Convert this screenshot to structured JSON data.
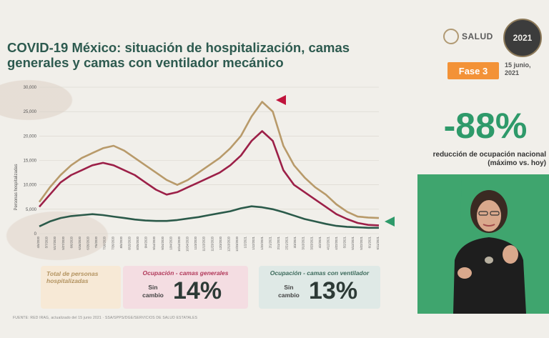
{
  "header": {
    "title": "COVID-19 México: situación de hospitalización, camas generales y camas con ventilador mecánico",
    "logo_salud": "SALUD",
    "logo_year": "2021",
    "phase": "Fase 3",
    "date": "15 junio, 2021"
  },
  "summary": {
    "percent": "-88%",
    "caption": "reducción de ocupación nacional (máximo vs. hoy)"
  },
  "cards": {
    "total_label": "Total de personas hospitalizadas",
    "general_title": "Ocupación - camas generales",
    "general_status": "Sin cambio",
    "general_value": "14%",
    "vent_title": "Ocupación - camas con ventilador",
    "vent_status": "Sin cambio",
    "vent_value": "13%"
  },
  "footer": "FUENTE: RED IRAG, actualizado del 15 junio 2021 · SSA/SPPS/DGE/SERVICIOS DE SALUD ESTATALES",
  "colors": {
    "total": "#b89a6a",
    "general": "#9c2048",
    "ventilator": "#2b5a4a",
    "accent_red": "#c0143c",
    "accent_green": "#2e9a6a"
  },
  "chart_data": {
    "type": "line",
    "ylabel": "Personas hospitalizadas",
    "ylim": [
      0,
      30000
    ],
    "yticks": [
      "0",
      "5,000",
      "10,000",
      "15,000",
      "20,000",
      "25,000",
      "30,000"
    ],
    "xticks": [
      "4/5/2020",
      "5/7/2020",
      "5/17/2020",
      "5/27/2020",
      "6/6/2020",
      "6/16/2020",
      "6/26/2020",
      "7/6/2020",
      "7/16/2020",
      "7/26/2020",
      "8/5/2020",
      "8/15/2020",
      "8/25/2020",
      "9/4/2020",
      "9/14/2020",
      "9/24/2020",
      "10/4/2020",
      "10/14/2020",
      "10/24/2020",
      "11/3/2020",
      "11/13/2020",
      "11/23/2020",
      "12/3/2020",
      "12/13/2020",
      "12/23/2020",
      "1/2/2021",
      "1/12/2021",
      "1/22/2021",
      "2/1/2021",
      "2/11/2021",
      "2/21/2021",
      "3/3/2021",
      "3/13/2021",
      "3/23/2021",
      "4/2/2021",
      "4/12/2021",
      "4/22/2021",
      "5/2/2021",
      "5/12/2021",
      "5/22/2021",
      "6/1/2021",
      "6/11/2021"
    ],
    "series": [
      {
        "name": "Total de personas hospitalizadas",
        "values": [
          6500,
          9500,
          12000,
          14000,
          15500,
          16500,
          17500,
          18000,
          17000,
          15500,
          14000,
          12500,
          11000,
          10000,
          11000,
          12500,
          14000,
          15500,
          17500,
          20000,
          24000,
          27000,
          25000,
          18000,
          14000,
          11500,
          9500,
          8000,
          6000,
          4500,
          3500,
          3300,
          3200
        ]
      },
      {
        "name": "Ocupación - camas generales",
        "values": [
          5500,
          8000,
          10500,
          12000,
          13000,
          14000,
          14500,
          14000,
          13000,
          12000,
          10500,
          9000,
          8000,
          8500,
          9500,
          10500,
          11500,
          12500,
          14000,
          16000,
          19000,
          21000,
          19000,
          13000,
          10000,
          8500,
          7000,
          5500,
          4000,
          3000,
          2200,
          1800,
          1700
        ]
      },
      {
        "name": "Ocupación - camas con ventilador",
        "values": [
          1500,
          2500,
          3200,
          3600,
          3800,
          4000,
          3800,
          3500,
          3200,
          2900,
          2700,
          2600,
          2600,
          2800,
          3100,
          3400,
          3800,
          4200,
          4600,
          5200,
          5600,
          5400,
          5000,
          4400,
          3700,
          3000,
          2500,
          2000,
          1600,
          1400,
          1300,
          1200,
          1200
        ]
      }
    ]
  }
}
